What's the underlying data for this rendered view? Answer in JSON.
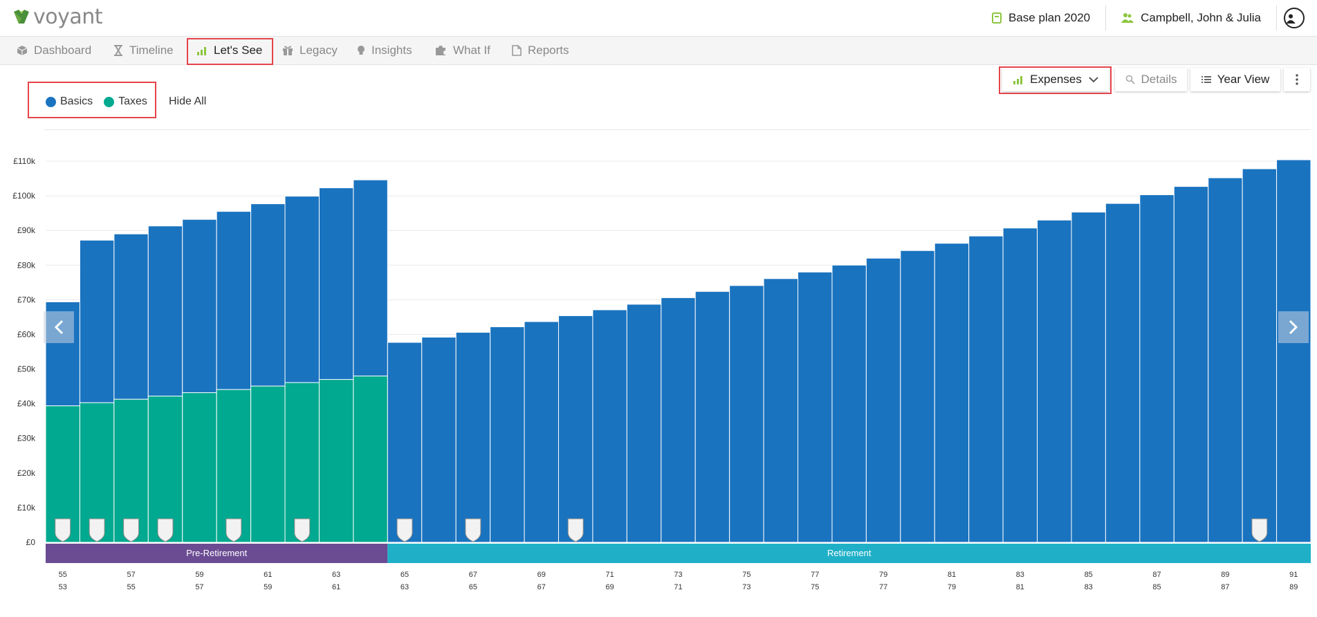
{
  "app": {
    "logo_text": "voyant",
    "plan_label": "Base plan 2020",
    "client_label": "Campbell, John & Julia"
  },
  "nav": {
    "tabs": [
      {
        "label": "Dashboard",
        "icon": "cube-icon"
      },
      {
        "label": "Timeline",
        "icon": "hourglass-icon"
      },
      {
        "label": "Let's See",
        "icon": "bar-chart-icon"
      },
      {
        "label": "Legacy",
        "icon": "gift-icon"
      },
      {
        "label": "Insights",
        "icon": "lightbulb-icon"
      },
      {
        "label": "What If",
        "icon": "puzzle-icon"
      },
      {
        "label": "Reports",
        "icon": "document-icon"
      }
    ],
    "active": "Let's See"
  },
  "toolbar": {
    "view_select_label": "Expenses",
    "details_label": "Details",
    "year_view_label": "Year View"
  },
  "legend": {
    "entries": [
      {
        "label": "Basics",
        "color": "#1a73bf"
      },
      {
        "label": "Taxes",
        "color": "#00a98f"
      }
    ],
    "hide_all_label": "Hide All"
  },
  "colors": {
    "basics": "#1a73bf",
    "taxes": "#00a98f",
    "accent": "#8dc63f",
    "pre_retirement": "#6b4c93",
    "retirement": "#1fb0c8",
    "highlight": "#e5434a"
  },
  "chart_data": {
    "type": "bar",
    "stacked": true,
    "ylim": [
      0,
      110000
    ],
    "y_ticks": [
      "£0",
      "£10k",
      "£20k",
      "£30k",
      "£40k",
      "£50k",
      "£60k",
      "£70k",
      "£80k",
      "£90k",
      "£100k",
      "£110k"
    ],
    "grid": true,
    "x_ages_primary": [
      55,
      56,
      57,
      58,
      59,
      60,
      61,
      62,
      63,
      64,
      65,
      66,
      67,
      68,
      69,
      70,
      71,
      72,
      73,
      74,
      75,
      76,
      77,
      78,
      79,
      80,
      81,
      82,
      83,
      84,
      85,
      86,
      87,
      88,
      89,
      90,
      91
    ],
    "x_ages_secondary": [
      53,
      54,
      55,
      56,
      57,
      58,
      59,
      60,
      61,
      62,
      63,
      64,
      65,
      66,
      67,
      68,
      69,
      70,
      71,
      72,
      73,
      74,
      75,
      76,
      77,
      78,
      79,
      80,
      81,
      82,
      83,
      84,
      85,
      86,
      87,
      88,
      89
    ],
    "x_tick_labels_primary": [
      "55",
      "57",
      "59",
      "61",
      "63",
      "65",
      "67",
      "69",
      "71",
      "73",
      "75",
      "77",
      "79",
      "81",
      "83",
      "85",
      "87",
      "89",
      "91"
    ],
    "x_tick_labels_secondary": [
      "53",
      "55",
      "57",
      "59",
      "61",
      "63",
      "65",
      "67",
      "69",
      "71",
      "73",
      "75",
      "77",
      "79",
      "81",
      "83",
      "85",
      "87",
      "89"
    ],
    "series": [
      {
        "name": "Taxes",
        "color": "#00a98f",
        "values": [
          39400,
          40300,
          41300,
          42200,
          43200,
          44100,
          45100,
          46100,
          47000,
          48000,
          0,
          0,
          0,
          0,
          0,
          0,
          0,
          0,
          0,
          0,
          0,
          0,
          0,
          0,
          0,
          0,
          0,
          0,
          0,
          0,
          0,
          0,
          0,
          0,
          0,
          0,
          0
        ]
      },
      {
        "name": "Basics",
        "color": "#1a73bf",
        "values": [
          30000,
          46900,
          47700,
          49100,
          50000,
          51400,
          52600,
          53800,
          55300,
          56600,
          57700,
          59200,
          60600,
          62200,
          63700,
          65400,
          67100,
          68700,
          70600,
          72400,
          74100,
          76100,
          78000,
          80000,
          82000,
          84200,
          86300,
          88400,
          90700,
          93000,
          95300,
          97800,
          100300,
          102700,
          105200,
          107800,
          110400
        ]
      }
    ],
    "milestone_markers_at_ages": [
      55,
      56,
      57,
      58,
      60,
      62,
      65,
      67,
      70,
      90
    ],
    "phases": [
      {
        "label": "Pre-Retirement",
        "from_age": 55,
        "to_age": 65,
        "color": "#6b4c93"
      },
      {
        "label": "Retirement",
        "from_age": 65,
        "to_age": 91,
        "color": "#1fb0c8"
      }
    ]
  }
}
